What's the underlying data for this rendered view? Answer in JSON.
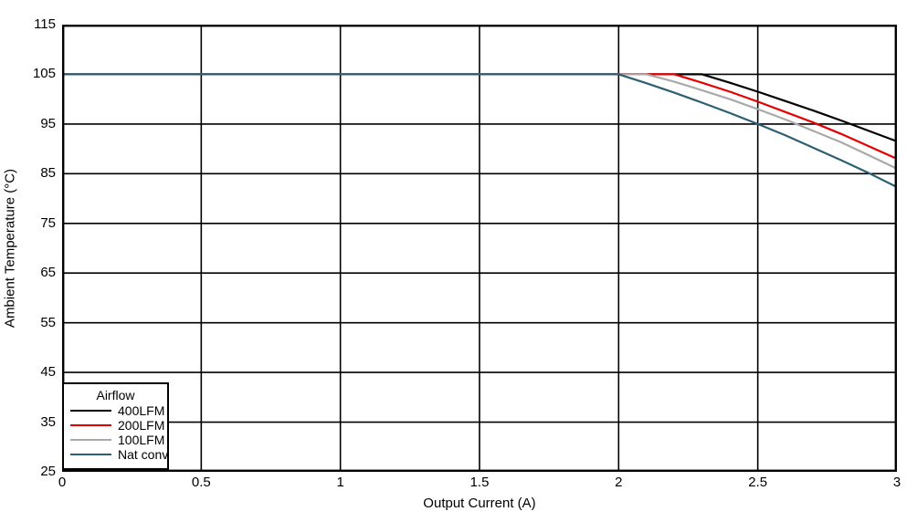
{
  "figure": {
    "background": "#ffffff",
    "grid_color": "#000000",
    "axis_color": "#000000"
  },
  "chart_data": {
    "type": "line",
    "title": "",
    "xlabel": "Output Current (A)",
    "ylabel": "Ambient Temperature (°C)",
    "xlim": [
      0,
      3
    ],
    "ylim": [
      25,
      115
    ],
    "x_ticks": [
      0,
      0.5,
      1,
      1.5,
      2,
      2.5,
      3
    ],
    "x_tick_labels": [
      "0",
      "0.5",
      "1",
      "1.5",
      "2",
      "2.5",
      "3"
    ],
    "y_ticks": [
      25,
      35,
      45,
      55,
      65,
      75,
      85,
      95,
      105,
      115
    ],
    "y_tick_labels": [
      "25",
      "35",
      "45",
      "55",
      "65",
      "75",
      "85",
      "95",
      "105",
      "115"
    ],
    "grid": {
      "show": true,
      "color": "#000000",
      "which": "major"
    },
    "legend": {
      "title": "Airflow",
      "position": "bottom-left"
    },
    "series": [
      {
        "name": "400LFM",
        "color": "#000000",
        "points": [
          [
            0,
            105
          ],
          [
            2.3,
            105
          ],
          [
            2.4,
            103.3
          ],
          [
            2.5,
            101.5
          ],
          [
            2.6,
            99.6
          ],
          [
            2.7,
            97.7
          ],
          [
            2.8,
            95.7
          ],
          [
            2.9,
            93.6
          ],
          [
            3.0,
            91.5
          ]
        ]
      },
      {
        "name": "200LFM",
        "color": "#e60000",
        "points": [
          [
            0,
            105
          ],
          [
            2.2,
            105
          ],
          [
            2.3,
            103.3
          ],
          [
            2.4,
            101.5
          ],
          [
            2.5,
            99.5
          ],
          [
            2.6,
            97.4
          ],
          [
            2.7,
            95.3
          ],
          [
            2.8,
            93.0
          ],
          [
            2.9,
            90.5
          ],
          [
            3.0,
            88.0
          ]
        ]
      },
      {
        "name": "100LFM",
        "color": "#a9a9a9",
        "points": [
          [
            0,
            105
          ],
          [
            2.1,
            105
          ],
          [
            2.2,
            103.5
          ],
          [
            2.3,
            101.8
          ],
          [
            2.4,
            100.0
          ],
          [
            2.5,
            98.0
          ],
          [
            2.6,
            95.9
          ],
          [
            2.7,
            93.6
          ],
          [
            2.8,
            91.3
          ],
          [
            2.9,
            88.7
          ],
          [
            3.0,
            86.0
          ]
        ]
      },
      {
        "name": "Nat conv",
        "color": "#2d5f73",
        "points": [
          [
            0,
            105
          ],
          [
            2.0,
            105
          ],
          [
            2.1,
            103.2
          ],
          [
            2.2,
            101.3
          ],
          [
            2.3,
            99.3
          ],
          [
            2.4,
            97.2
          ],
          [
            2.5,
            95.0
          ],
          [
            2.6,
            92.7
          ],
          [
            2.7,
            90.2
          ],
          [
            2.8,
            87.7
          ],
          [
            2.9,
            85.1
          ],
          [
            3.0,
            82.3
          ]
        ]
      }
    ]
  }
}
